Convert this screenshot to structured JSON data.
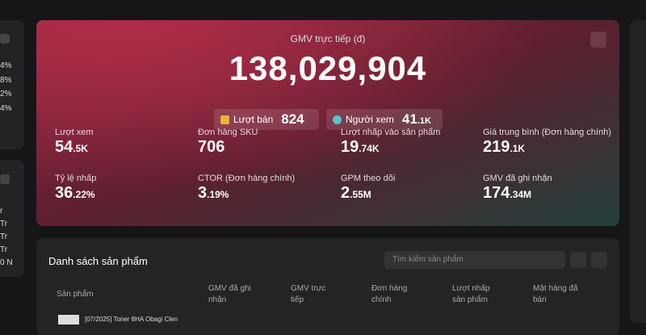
{
  "left_panel": {
    "percents": [
      "4%",
      "8%",
      "2%",
      "4%"
    ],
    "items": [
      "r",
      "Tr",
      "Tr",
      "Tr",
      "0 N"
    ]
  },
  "hero": {
    "title": "GMV trực tiếp (đ)",
    "value": "138,029,904",
    "pills": [
      {
        "label": "Lượt bán",
        "value": "824"
      },
      {
        "label": "Người xem",
        "value": "41",
        "suffix": ".1K"
      }
    ],
    "metrics": [
      {
        "label": "Lượt xem",
        "value": "54",
        "suffix": ".5K"
      },
      {
        "label": "Đơn hàng SKU",
        "value": "706"
      },
      {
        "label": "Lượt nhấp vào sản phẩm",
        "value": "19",
        "suffix": ".74K"
      },
      {
        "label": "Giá trung bình (Đơn hàng chính)",
        "value": "219",
        "suffix": ".1K"
      },
      {
        "label": "Tỷ lệ nhấp",
        "value": "36",
        "suffix": ".22%"
      },
      {
        "label": "CTOR (Đơn hàng chính)",
        "value": "3",
        "suffix": ".19%"
      },
      {
        "label": "GPM theo dõi",
        "value": "2",
        "suffix": ".55M"
      },
      {
        "label": "GMV đã ghi nhận",
        "value": "174",
        "suffix": ".34M"
      }
    ]
  },
  "products": {
    "title": "Danh sách sản phẩm",
    "search_placeholder": "Tìm kiếm sản phẩm",
    "columns": [
      "Sản phẩm",
      "GMV đã ghi nhận",
      "GMV trực tiếp",
      "Đơn hàng chính",
      "Lượt nhấp sản phẩm",
      "Mặt hàng đã bán"
    ],
    "rows": [
      [
        "[07/2025] Toner 8HA Obagi Clen"
      ]
    ]
  }
}
